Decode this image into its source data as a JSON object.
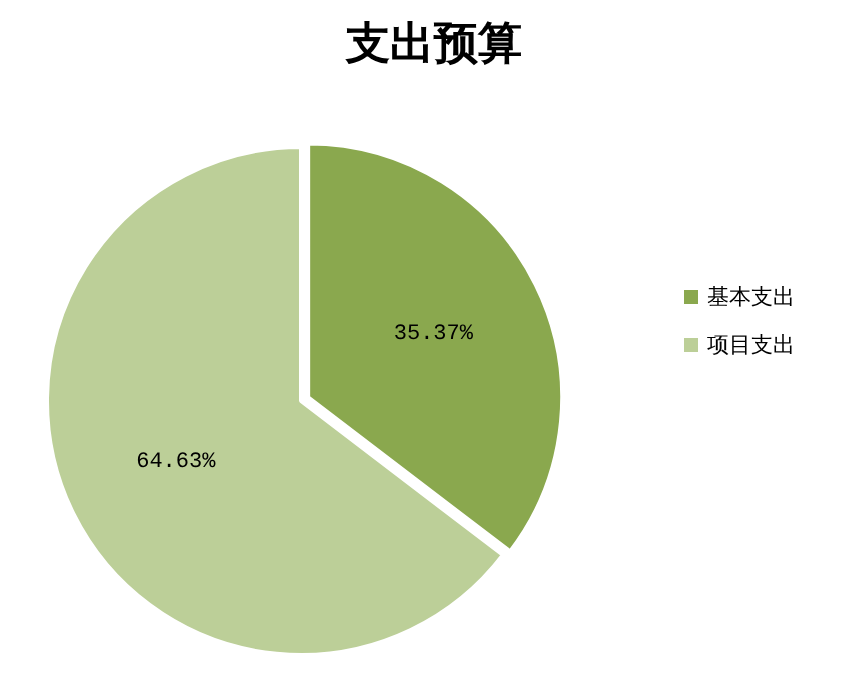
{
  "chart_data": {
    "type": "pie",
    "title": "支出预算",
    "categories": [
      "基本支出",
      "项目支出"
    ],
    "values": [
      35.37,
      64.63
    ],
    "colors": [
      "#8aa84e",
      "#bccf98"
    ],
    "value_labels": [
      "35.37%",
      "64.63%"
    ],
    "legend": "right"
  }
}
